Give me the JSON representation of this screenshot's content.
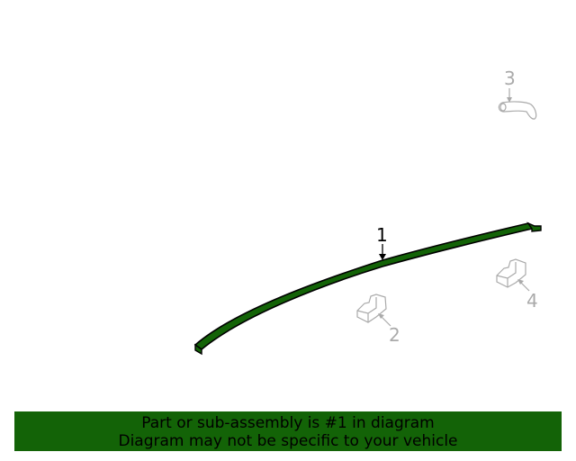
{
  "diagram": {
    "part_color": "#136307",
    "ghost_color": "#aaaaaa",
    "callouts": [
      {
        "label": "1",
        "highlighted": true
      },
      {
        "label": "2",
        "highlighted": false
      },
      {
        "label": "3",
        "highlighted": false
      },
      {
        "label": "4",
        "highlighted": false
      }
    ]
  },
  "banner": {
    "line1": "Part or sub-assembly is #1 in diagram",
    "line2": "Diagram may not be specific to your vehicle",
    "color": "#136307"
  }
}
